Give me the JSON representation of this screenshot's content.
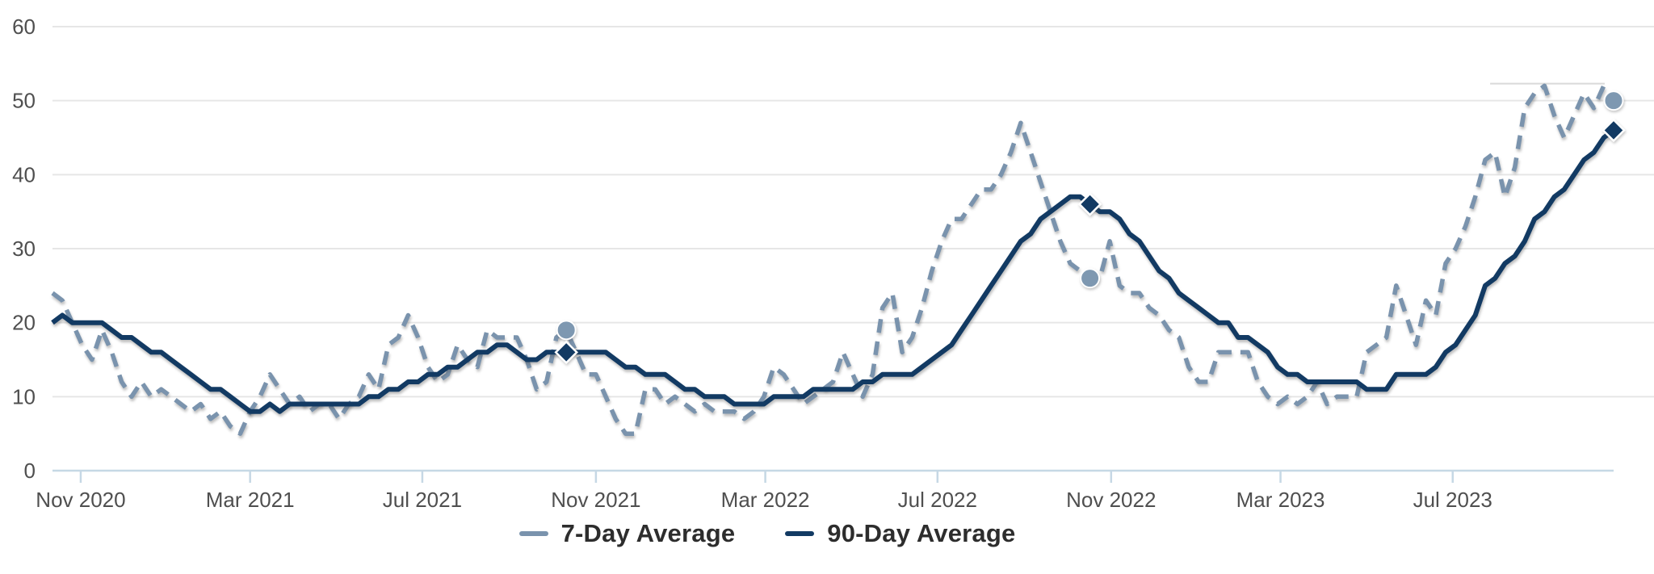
{
  "chart_data": {
    "type": "line",
    "title": "",
    "xlabel": "",
    "ylabel": "",
    "start_date": "2020-10-12",
    "interval_days": 7,
    "y_axis": {
      "min": 0,
      "max": 60,
      "ticks": [
        0,
        10,
        20,
        30,
        40,
        50,
        60
      ],
      "grid": true
    },
    "x_ticks": [
      {
        "label": "Nov 2020",
        "date": "2020-11-01"
      },
      {
        "label": "Mar 2021",
        "date": "2021-03-01"
      },
      {
        "label": "Jul 2021",
        "date": "2021-07-01"
      },
      {
        "label": "Nov 2021",
        "date": "2021-11-01"
      },
      {
        "label": "Mar 2022",
        "date": "2022-03-01"
      },
      {
        "label": "Jul 2022",
        "date": "2022-07-01"
      },
      {
        "label": "Nov 2022",
        "date": "2022-11-01"
      },
      {
        "label": "Mar 2023",
        "date": "2023-03-01"
      },
      {
        "label": "Jul 2023",
        "date": "2023-07-01"
      }
    ],
    "legend_position": "bottom-center",
    "series": [
      {
        "name": "7-Day Average",
        "style": "dashed",
        "color": "#7A93AD",
        "values": [
          24,
          23,
          20,
          17,
          15,
          19,
          16,
          12,
          10,
          12,
          10,
          11,
          10,
          9,
          8,
          9,
          7,
          8,
          6,
          5,
          8,
          10,
          13,
          11,
          9,
          10,
          8,
          9,
          9,
          7,
          9,
          10,
          13,
          11,
          17,
          18,
          21,
          18,
          14,
          12,
          13,
          17,
          15,
          14,
          19,
          18,
          18,
          18,
          15,
          11,
          12,
          18,
          19,
          16,
          13,
          13,
          10,
          7,
          5,
          5,
          11,
          11,
          9,
          10,
          9,
          8,
          9,
          8,
          8,
          8,
          7,
          8,
          10,
          14,
          13,
          11,
          9,
          10,
          11,
          12,
          16,
          13,
          10,
          13,
          22,
          24,
          16,
          18,
          22,
          27,
          31,
          34,
          34,
          36,
          38,
          38,
          40,
          43,
          47,
          43,
          39,
          35,
          31,
          28,
          27,
          26,
          26,
          31,
          25,
          24,
          24,
          22,
          21,
          19,
          18,
          14,
          12,
          12,
          16,
          16,
          16,
          16,
          12,
          10,
          9,
          10,
          9,
          10,
          12,
          9,
          10,
          10,
          10,
          16,
          17,
          18,
          25,
          21,
          17,
          23,
          21,
          28,
          30,
          33,
          37,
          42,
          43,
          37,
          41,
          49,
          51,
          52,
          48,
          45,
          48,
          51,
          49,
          52,
          50
        ]
      },
      {
        "name": "90-Day Average",
        "style": "solid",
        "color": "#123A63",
        "values": [
          20,
          21,
          20,
          20,
          20,
          20,
          19,
          18,
          18,
          17,
          16,
          16,
          15,
          14,
          13,
          12,
          11,
          11,
          10,
          9,
          8,
          8,
          9,
          8,
          9,
          9,
          9,
          9,
          9,
          9,
          9,
          9,
          10,
          10,
          11,
          11,
          12,
          12,
          13,
          13,
          14,
          14,
          15,
          16,
          16,
          17,
          17,
          16,
          15,
          15,
          16,
          16,
          16,
          16,
          16,
          16,
          16,
          15,
          14,
          14,
          13,
          13,
          13,
          12,
          11,
          11,
          10,
          10,
          10,
          9,
          9,
          9,
          9,
          10,
          10,
          10,
          10,
          11,
          11,
          11,
          11,
          11,
          12,
          12,
          13,
          13,
          13,
          13,
          14,
          15,
          16,
          17,
          19,
          21,
          23,
          25,
          27,
          29,
          31,
          32,
          34,
          35,
          36,
          37,
          37,
          36,
          35,
          35,
          34,
          32,
          31,
          29,
          27,
          26,
          24,
          23,
          22,
          21,
          20,
          20,
          18,
          18,
          17,
          16,
          14,
          13,
          13,
          12,
          12,
          12,
          12,
          12,
          12,
          11,
          11,
          11,
          13,
          13,
          13,
          13,
          14,
          16,
          17,
          19,
          21,
          25,
          26,
          28,
          29,
          31,
          34,
          35,
          37,
          38,
          40,
          42,
          43,
          45,
          46
        ]
      }
    ],
    "markers": [
      {
        "series": 0,
        "week": 52,
        "value": 19,
        "shape": "circle"
      },
      {
        "series": 1,
        "week": 52,
        "value": 16,
        "shape": "diamond"
      },
      {
        "series": 0,
        "week": 105,
        "value": 26,
        "shape": "circle"
      },
      {
        "series": 1,
        "week": 105,
        "value": 36,
        "shape": "diamond"
      },
      {
        "series": 0,
        "week": 158,
        "value": 50,
        "shape": "circle"
      },
      {
        "series": 1,
        "week": 158,
        "value": 46,
        "shape": "diamond"
      }
    ],
    "annotation_line": {
      "value": 52.3,
      "from_week": 145.5,
      "to_week": 157.1
    }
  },
  "legend": {
    "items": [
      {
        "label": "7-Day Average"
      },
      {
        "label": "90-Day Average"
      }
    ]
  },
  "colors": {
    "background": "#ffffff",
    "gridline": "#e6e6e6",
    "axis_line": "#c6d8e5",
    "tick_mark": "#c6d8e5",
    "axis_label": "#4f4f4f",
    "annotation": "#d9d9d9",
    "marker_circle_fill": "#7E98B1",
    "marker_diamond_fill": "#123A63",
    "legend_text": "#2d2d2d"
  }
}
